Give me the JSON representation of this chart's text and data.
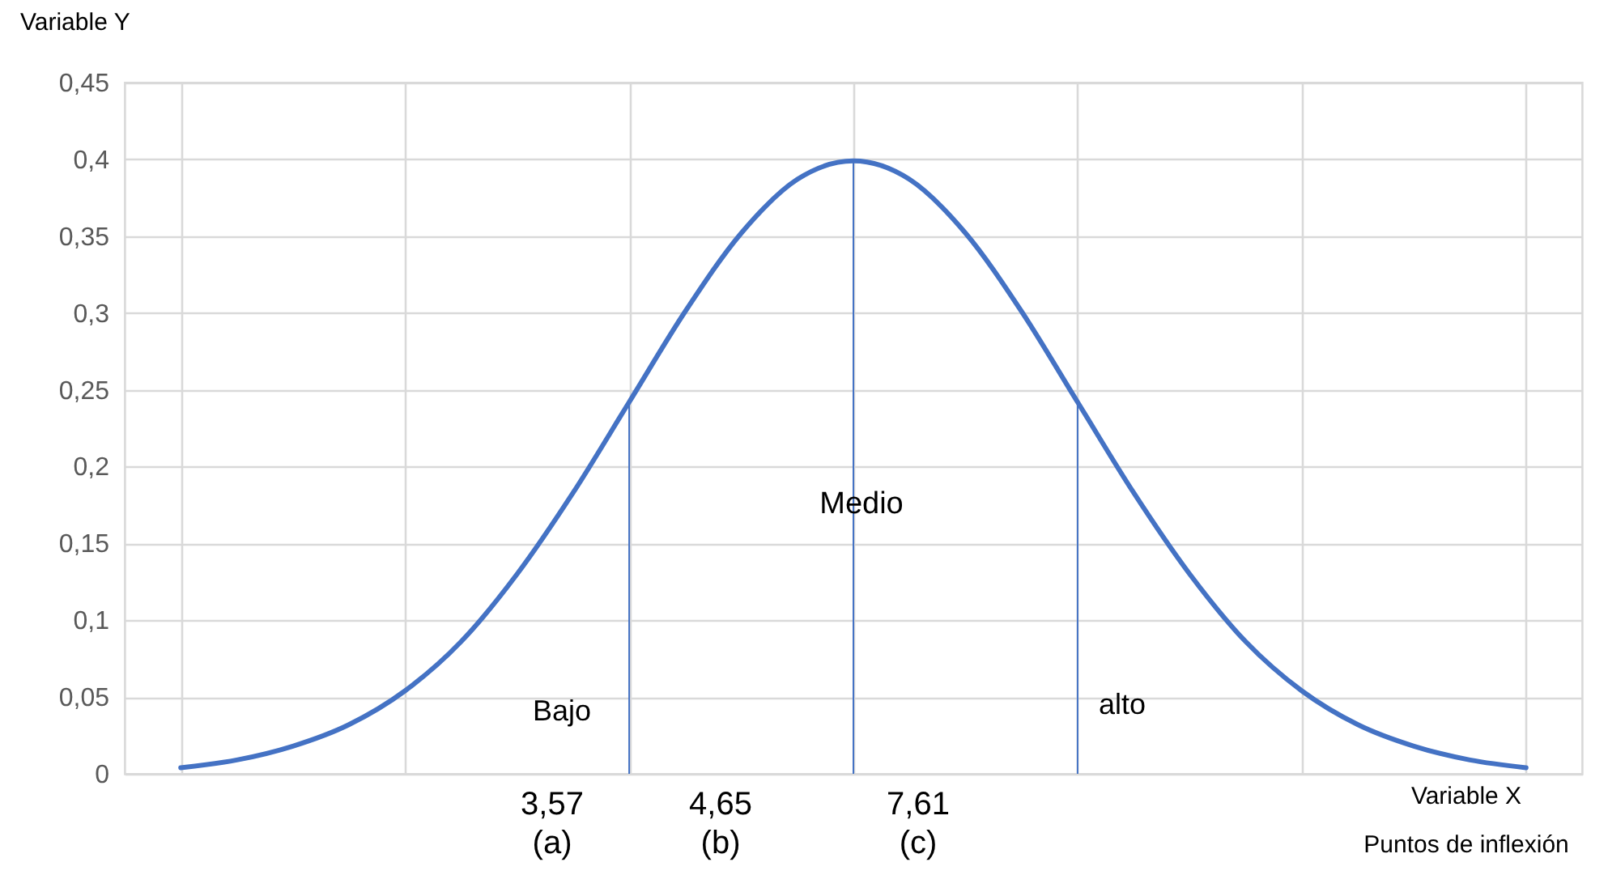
{
  "chart_data": {
    "type": "line",
    "xlabel": "Variable X\nPuntos de inflexión",
    "ylabel": "Variable Y",
    "categories": [
      null,
      null,
      null,
      null,
      null,
      null,
      null,
      null,
      null,
      null,
      null,
      null,
      null,
      null,
      null,
      null,
      null,
      null,
      null,
      null,
      null,
      null,
      null,
      null,
      null
    ],
    "series": [
      {
        "color": "#4472c4",
        "values": [
          0.004,
          0.009,
          0.018,
          0.032,
          0.054,
          0.086,
          0.13,
          0.183,
          0.242,
          0.301,
          0.352,
          0.387,
          0.399,
          0.387,
          0.352,
          0.301,
          0.242,
          0.183,
          0.13,
          0.086,
          0.054,
          0.032,
          0.018,
          0.009,
          0.004
        ]
      }
    ],
    "ylim": [
      0,
      0.45
    ],
    "yticks": [
      {
        "value": 0,
        "label": "0"
      },
      {
        "value": 0.05,
        "label": "0,05"
      },
      {
        "value": 0.1,
        "label": "0,1"
      },
      {
        "value": 0.15,
        "label": "0,15"
      },
      {
        "value": 0.2,
        "label": "0,2"
      },
      {
        "value": 0.25,
        "label": "0,25"
      },
      {
        "value": 0.3,
        "label": "0,3"
      },
      {
        "value": 0.35,
        "label": "0,35"
      },
      {
        "value": 0.4,
        "label": "0,4"
      },
      {
        "value": 0.45,
        "label": "0,45"
      }
    ],
    "grid": true,
    "tick_labels": "y",
    "annotations": [
      "3,57\n(a)",
      "4,65\n(b)",
      "7,61\n(c)",
      "Bajo",
      "Medio",
      "alto"
    ]
  }
}
